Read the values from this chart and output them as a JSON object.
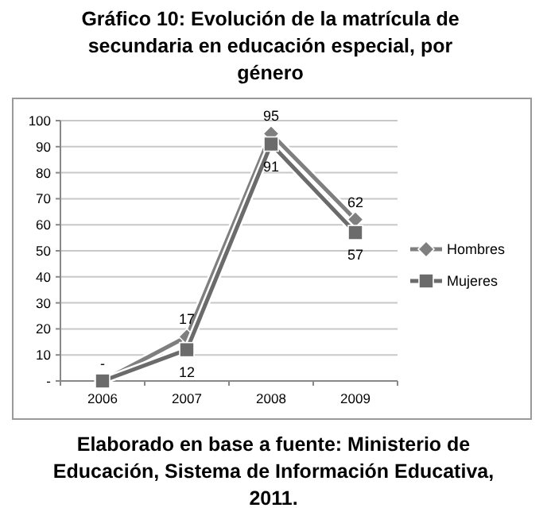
{
  "chart_data": {
    "type": "line",
    "title": "Gráfico 10: Evolución de la matrícula de secundaria en educación especial, por género",
    "categories": [
      "2006",
      "2007",
      "2008",
      "2009"
    ],
    "series": [
      {
        "name": "Hombres",
        "color": "#7f7f7f",
        "marker": "diamond",
        "values": [
          0,
          17,
          95,
          62
        ],
        "value_labels": [
          "-",
          "17",
          "95",
          "62"
        ]
      },
      {
        "name": "Mujeres",
        "color": "#6b6b6b",
        "marker": "square",
        "values": [
          0,
          12,
          91,
          57
        ],
        "value_labels": [
          null,
          "12",
          "91",
          "57"
        ]
      }
    ],
    "ylim": [
      0,
      100
    ],
    "yticks": [
      {
        "value": 0,
        "label": "-"
      },
      10,
      20,
      30,
      40,
      50,
      60,
      70,
      80,
      90,
      100
    ],
    "grid": "y",
    "legend": "right",
    "annotations": [
      "Elaborado en base a fuente: Ministerio de Educación, Sistema de Información Educativa, 2011."
    ]
  }
}
